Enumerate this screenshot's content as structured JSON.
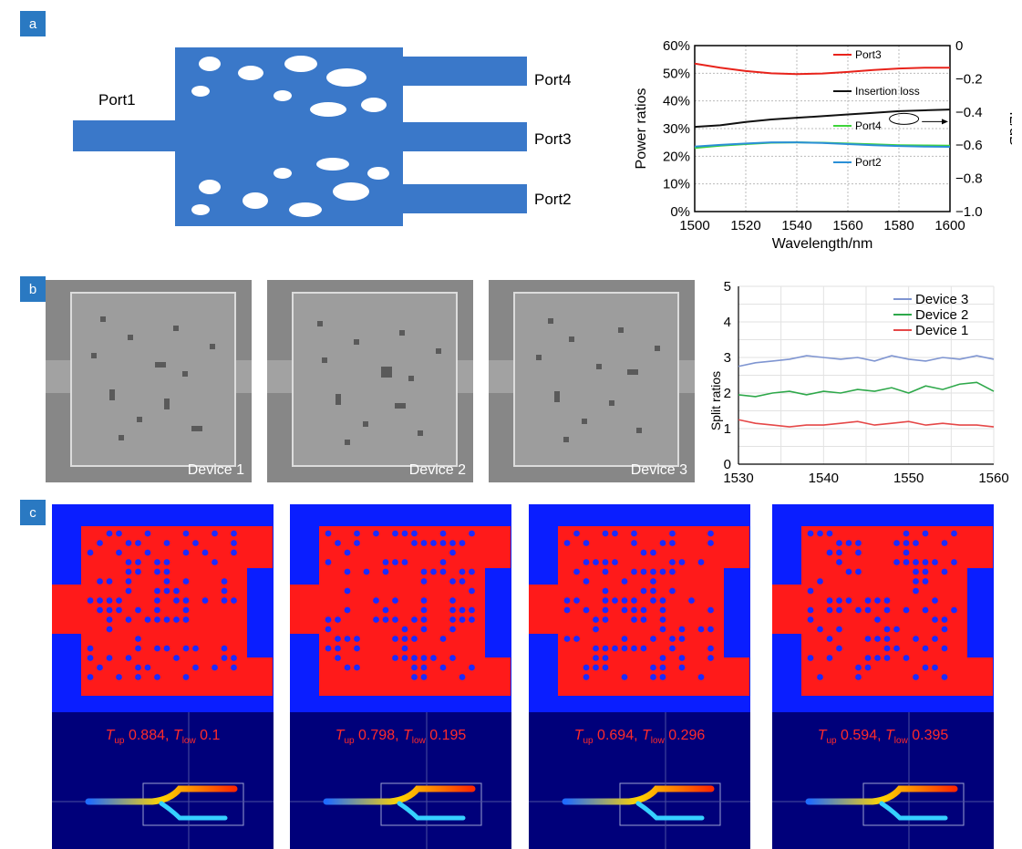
{
  "panels": {
    "a": "a",
    "b": "b",
    "c": "c"
  },
  "panel_a": {
    "ports": {
      "port1": "Port1",
      "port2": "Port2",
      "port3": "Port3",
      "port4": "Port4"
    }
  },
  "panel_b": {
    "devices": [
      "Device 1",
      "Device 2",
      "Device 3"
    ]
  },
  "panel_c": {
    "sims": [
      {
        "t_up": "0.884",
        "t_low": "0.1"
      },
      {
        "t_up": "0.798",
        "t_low": "0.195"
      },
      {
        "t_up": "0.694",
        "t_low": "0.296"
      },
      {
        "t_up": "0.594",
        "t_low": "0.395"
      }
    ],
    "sep": ",",
    "t_sym": "T",
    "up_sub": "up",
    "low_sub": "low"
  },
  "chart_data": [
    {
      "type": "line",
      "xlabel": "Wavelength/nm",
      "ylabel": "Power ratios",
      "y2label": "IL/dB",
      "xlim": [
        1500,
        1600
      ],
      "ylim": [
        0,
        60
      ],
      "y2lim": [
        -1.0,
        0
      ],
      "xticks": [
        "1500",
        "1520",
        "1540",
        "1560",
        "1580",
        "1600"
      ],
      "yticks": [
        "0%",
        "10%",
        "20%",
        "30%",
        "40%",
        "50%",
        "60%"
      ],
      "y2ticks": [
        "0",
        "−0.2",
        "−0.4",
        "−0.6",
        "−0.8",
        "−1.0"
      ],
      "grid": true,
      "series": [
        {
          "name": "Port3",
          "color": "#e8231b",
          "axis": "left",
          "x": [
            1500,
            1510,
            1520,
            1530,
            1540,
            1550,
            1560,
            1570,
            1580,
            1590,
            1600
          ],
          "y": [
            53.5,
            52.0,
            50.8,
            50.0,
            49.7,
            49.9,
            50.5,
            51.2,
            51.7,
            52.0,
            52.0
          ]
        },
        {
          "name": "Insertion loss",
          "color": "#111111",
          "axis": "right",
          "x": [
            1500,
            1510,
            1520,
            1530,
            1540,
            1550,
            1560,
            1570,
            1580,
            1590,
            1600
          ],
          "y": [
            -0.49,
            -0.48,
            -0.46,
            -0.445,
            -0.435,
            -0.425,
            -0.415,
            -0.405,
            -0.395,
            -0.39,
            -0.385
          ]
        },
        {
          "name": "Port4",
          "color": "#3ed43a",
          "axis": "left",
          "x": [
            1500,
            1510,
            1520,
            1530,
            1540,
            1550,
            1560,
            1570,
            1580,
            1590,
            1600
          ],
          "y": [
            23.0,
            23.8,
            24.4,
            24.9,
            25.0,
            24.9,
            24.6,
            24.3,
            24.0,
            23.9,
            23.8
          ]
        },
        {
          "name": "Port2",
          "color": "#2a8fd6",
          "axis": "left",
          "x": [
            1500,
            1510,
            1520,
            1530,
            1540,
            1550,
            1560,
            1570,
            1580,
            1590,
            1600
          ],
          "y": [
            23.5,
            24.1,
            24.6,
            25.0,
            25.0,
            24.8,
            24.4,
            24.0,
            23.7,
            23.5,
            23.4
          ]
        }
      ]
    },
    {
      "type": "line",
      "xlabel": "",
      "ylabel": "Split ratios",
      "xlim": [
        1530,
        1560
      ],
      "ylim": [
        0,
        5
      ],
      "xticks": [
        "1530",
        "1540",
        "1550",
        "1560"
      ],
      "yticks": [
        "0",
        "1",
        "2",
        "3",
        "4",
        "5"
      ],
      "grid": true,
      "legend": "top-right",
      "series": [
        {
          "name": "Device 3",
          "color": "#7f95d1",
          "x": [
            1530,
            1532,
            1534,
            1536,
            1538,
            1540,
            1542,
            1544,
            1546,
            1548,
            1550,
            1552,
            1554,
            1556,
            1558,
            1560
          ],
          "y": [
            2.75,
            2.85,
            2.9,
            2.95,
            3.05,
            3.0,
            2.95,
            3.0,
            2.9,
            3.05,
            2.95,
            2.9,
            3.0,
            2.95,
            3.05,
            2.95
          ]
        },
        {
          "name": "Device 2",
          "color": "#2ea84a",
          "x": [
            1530,
            1532,
            1534,
            1536,
            1538,
            1540,
            1542,
            1544,
            1546,
            1548,
            1550,
            1552,
            1554,
            1556,
            1558,
            1560
          ],
          "y": [
            1.95,
            1.9,
            2.0,
            2.05,
            1.95,
            2.05,
            2.0,
            2.1,
            2.05,
            2.15,
            2.0,
            2.2,
            2.1,
            2.25,
            2.3,
            2.05
          ]
        },
        {
          "name": "Device 1",
          "color": "#e54848",
          "x": [
            1530,
            1532,
            1534,
            1536,
            1538,
            1540,
            1542,
            1544,
            1546,
            1548,
            1550,
            1552,
            1554,
            1556,
            1558,
            1560
          ],
          "y": [
            1.25,
            1.15,
            1.1,
            1.05,
            1.1,
            1.1,
            1.15,
            1.2,
            1.1,
            1.15,
            1.2,
            1.1,
            1.15,
            1.1,
            1.1,
            1.05
          ]
        }
      ]
    }
  ]
}
